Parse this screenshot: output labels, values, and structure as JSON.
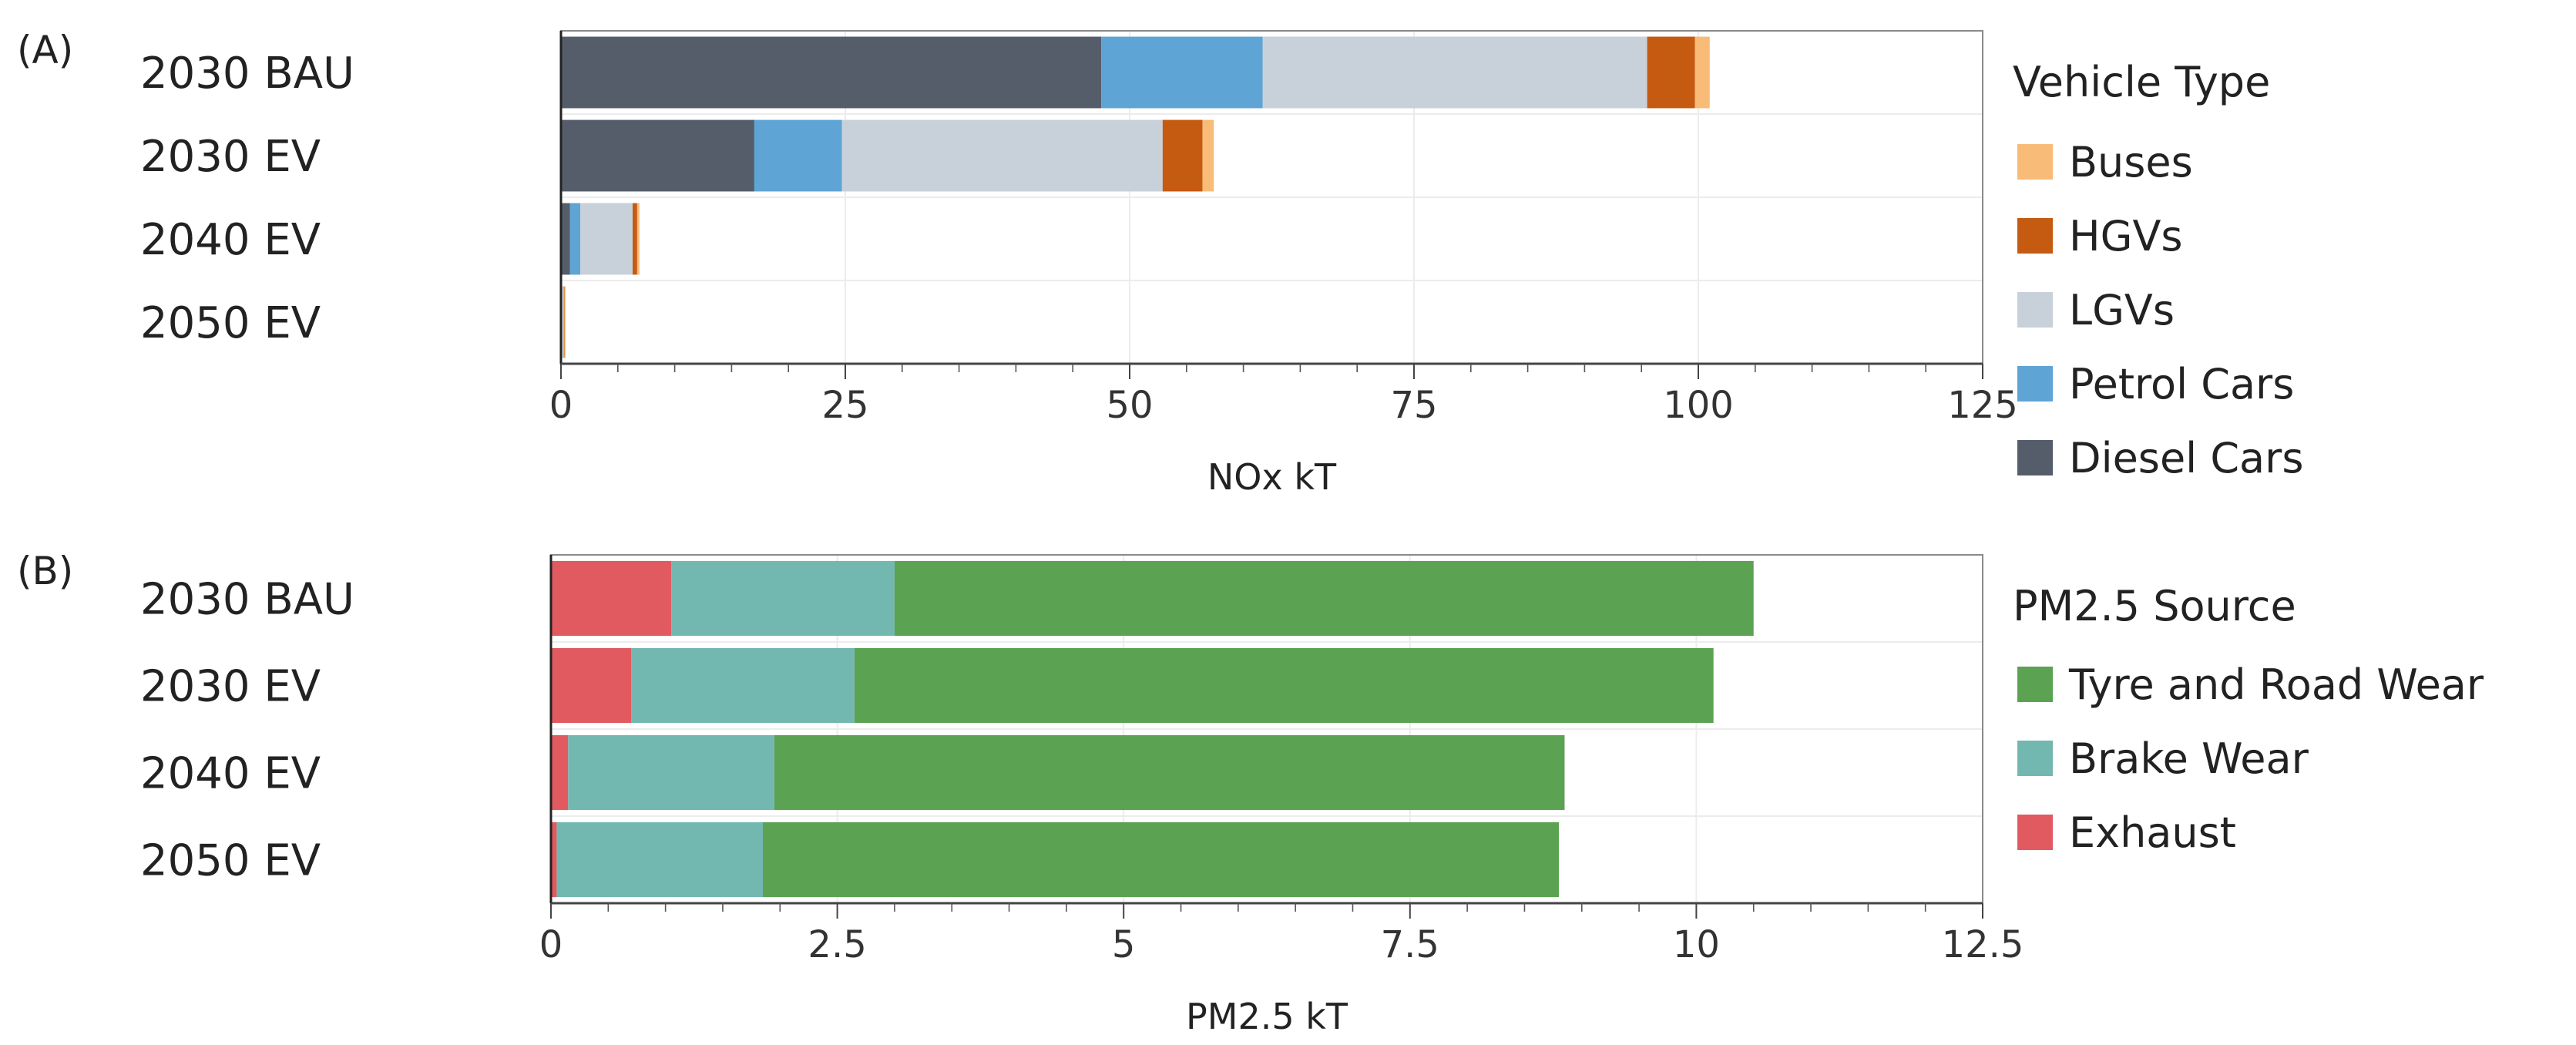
{
  "chart_data": [
    {
      "panel_label": "(A)",
      "type": "bar",
      "orientation": "horizontal",
      "stacked": true,
      "categories": [
        "2030 BAU",
        "2030 EV",
        "2040 EV",
        "2050 EV"
      ],
      "series": [
        {
          "name": "Diesel Cars",
          "color": "#555d6b",
          "values": [
            47.5,
            17,
            0.8,
            0.05
          ]
        },
        {
          "name": "Petrol Cars",
          "color": "#5ea4d4",
          "values": [
            14.2,
            7.7,
            0.9,
            0.05
          ]
        },
        {
          "name": "LGVs",
          "color": "#c8d0da",
          "values": [
            33.8,
            28.2,
            4.6,
            0.15
          ]
        },
        {
          "name": "HGVs",
          "color": "#c55a11",
          "values": [
            4.2,
            3.5,
            0.4,
            0.05
          ]
        },
        {
          "name": "Buses",
          "color": "#f9bb78",
          "values": [
            1.3,
            1.0,
            0.2,
            0.1
          ]
        }
      ],
      "xlim": [
        0,
        125
      ],
      "xticks": [
        "0",
        "25",
        "50",
        "75",
        "100",
        "125"
      ],
      "xlabel": "NOx kT",
      "legend_title": "Vehicle Type",
      "legend_order": [
        "Buses",
        "HGVs",
        "LGVs",
        "Petrol Cars",
        "Diesel Cars"
      ],
      "legend_position": "right",
      "grid": true
    },
    {
      "panel_label": "(B)",
      "type": "bar",
      "orientation": "horizontal",
      "stacked": true,
      "categories": [
        "2030 BAU",
        "2030 EV",
        "2040 EV",
        "2050 EV"
      ],
      "series": [
        {
          "name": "Exhaust",
          "color": "#e05a60",
          "values": [
            1.05,
            0.7,
            0.15,
            0.05
          ]
        },
        {
          "name": "Brake Wear",
          "color": "#73b8b0",
          "values": [
            1.95,
            1.95,
            1.8,
            1.8
          ]
        },
        {
          "name": "Tyre and Road Wear",
          "color": "#5ba352",
          "values": [
            7.5,
            7.5,
            6.9,
            6.95
          ]
        }
      ],
      "xlim": [
        0,
        12.5
      ],
      "xticks": [
        "0",
        "2.5",
        "5",
        "7.5",
        "10",
        "12.5"
      ],
      "xlabel": "PM2.5 kT",
      "legend_title": "PM2.5 Source",
      "legend_order": [
        "Tyre and Road Wear",
        "Brake Wear",
        "Exhaust"
      ],
      "legend_position": "right",
      "grid": true
    }
  ]
}
